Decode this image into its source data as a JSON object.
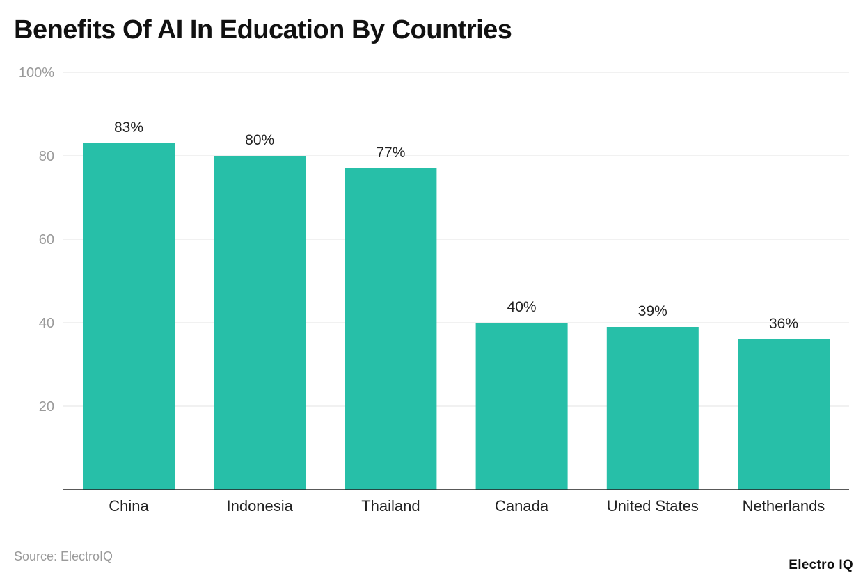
{
  "chart_data": {
    "type": "bar",
    "title": "Benefits Of AI In Education By Countries",
    "categories": [
      "China",
      "Indonesia",
      "Thailand",
      "Canada",
      "United States",
      "Netherlands"
    ],
    "values": [
      83,
      80,
      77,
      40,
      39,
      36
    ],
    "data_labels": [
      "83%",
      "80%",
      "77%",
      "40%",
      "39%",
      "36%"
    ],
    "yticks": [
      "20",
      "40",
      "60",
      "80",
      "100%"
    ],
    "ytick_values": [
      20,
      40,
      60,
      80,
      100
    ],
    "ylim": [
      0,
      100
    ],
    "xlabel": "",
    "ylabel": "",
    "grid": true,
    "legend": "none",
    "bar_color": "#27bfa8"
  },
  "footer": {
    "source": "Source: ElectroIQ",
    "brand": "Electro IQ"
  }
}
